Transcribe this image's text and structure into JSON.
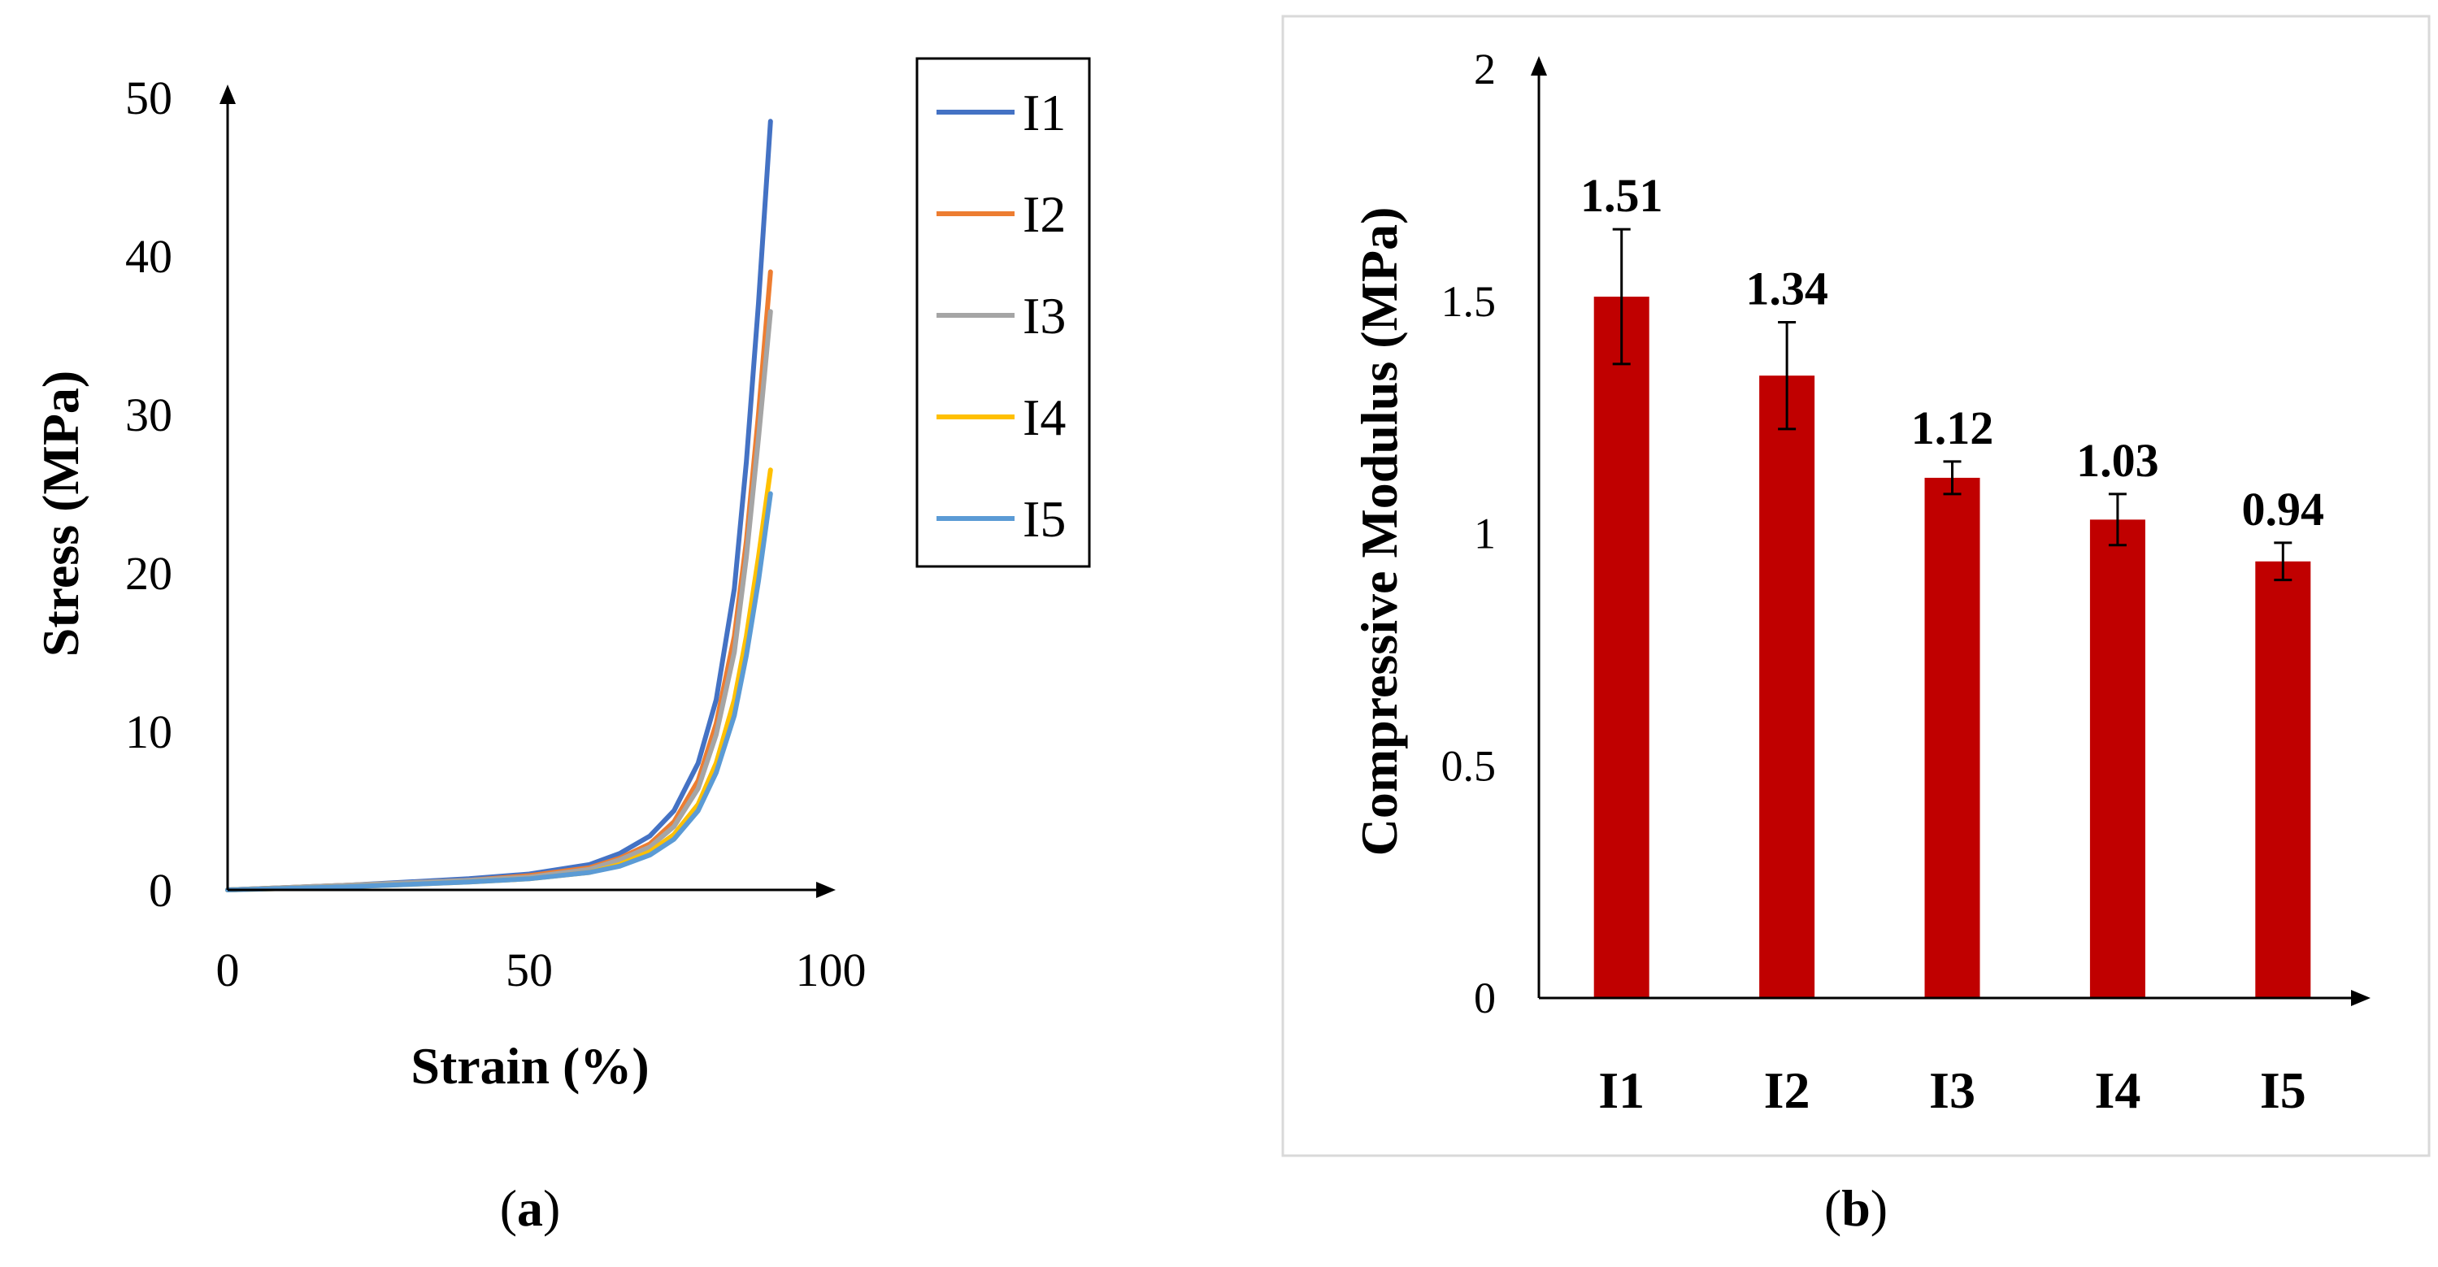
{
  "colors": {
    "axis": "#000000",
    "bar": "#c00000",
    "panel_border": "#d9d9d9",
    "I1": "#4472c4",
    "I2": "#ed7d31",
    "I3": "#a5a5a5",
    "I4": "#ffc000",
    "I5": "#5b9bd5"
  },
  "chart_data": [
    {
      "panel": "(a)",
      "panel_letter": "a",
      "type": "line",
      "title": "",
      "xlabel": "Strain (%)",
      "ylabel": "Stress (MPa)",
      "xlim": [
        0,
        100
      ],
      "ylim": [
        0,
        50
      ],
      "xticks": [
        "0",
        "50",
        "100"
      ],
      "yticks": [
        "0",
        "10",
        "20",
        "30",
        "40",
        "50"
      ],
      "grid": false,
      "legend_position": "top-right",
      "series": [
        {
          "name": "I1",
          "x": [
            0,
            20,
            40,
            50,
            60,
            65,
            70,
            74,
            78,
            81,
            84,
            86,
            88,
            90
          ],
          "y": [
            0,
            0.3,
            0.7,
            1.0,
            1.6,
            2.3,
            3.4,
            5.0,
            8.0,
            12.0,
            19.0,
            27.0,
            37.0,
            48.5
          ]
        },
        {
          "name": "I2",
          "x": [
            0,
            20,
            40,
            50,
            60,
            65,
            70,
            74,
            78,
            81,
            84,
            86,
            88,
            90
          ],
          "y": [
            0,
            0.3,
            0.6,
            0.9,
            1.4,
            2.0,
            2.9,
            4.3,
            6.9,
            10.5,
            16.0,
            22.0,
            30.0,
            39.0
          ]
        },
        {
          "name": "I3",
          "x": [
            0,
            20,
            40,
            50,
            60,
            65,
            70,
            74,
            78,
            81,
            84,
            86,
            88,
            90
          ],
          "y": [
            0,
            0.3,
            0.6,
            0.8,
            1.3,
            1.9,
            2.7,
            4.0,
            6.4,
            9.8,
            15.0,
            21.0,
            28.5,
            36.5
          ]
        },
        {
          "name": "I4",
          "x": [
            0,
            20,
            40,
            50,
            60,
            65,
            70,
            74,
            78,
            81,
            84,
            86,
            88,
            90
          ],
          "y": [
            0,
            0.2,
            0.5,
            0.7,
            1.1,
            1.6,
            2.4,
            3.5,
            5.4,
            8.0,
            12.0,
            16.0,
            21.0,
            26.5
          ]
        },
        {
          "name": "I5",
          "x": [
            0,
            20,
            40,
            50,
            60,
            65,
            70,
            74,
            78,
            81,
            84,
            86,
            88,
            90
          ],
          "y": [
            0,
            0.2,
            0.5,
            0.7,
            1.1,
            1.5,
            2.2,
            3.2,
            5.0,
            7.4,
            11.0,
            14.8,
            19.5,
            25.0
          ]
        }
      ]
    },
    {
      "panel": "(b)",
      "panel_letter": "b",
      "type": "bar",
      "title": "",
      "xlabel": "",
      "ylabel": "Compressive Modulus (MPa)",
      "ylim": [
        0,
        2
      ],
      "yticks": [
        "0",
        "0.5",
        "1",
        "1.5",
        "2"
      ],
      "grid": false,
      "categories": [
        "I1",
        "I2",
        "I3",
        "I4",
        "I5"
      ],
      "values": [
        1.51,
        1.34,
        1.12,
        1.03,
        0.94
      ],
      "value_labels": [
        "1.51",
        "1.34",
        "1.12",
        "1.03",
        "0.94"
      ],
      "error_bars": [
        0.145,
        0.115,
        0.035,
        0.055,
        0.04
      ]
    }
  ]
}
